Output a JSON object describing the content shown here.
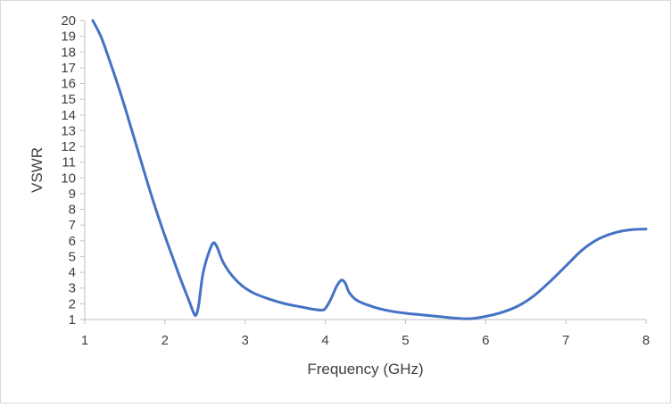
{
  "chart_data": {
    "type": "line",
    "title": "",
    "xlabel": "Frequency (GHz)",
    "ylabel": "VSWR",
    "xlim": [
      1,
      8
    ],
    "ylim": [
      1,
      20
    ],
    "x_ticks": [
      "1",
      "2",
      "3",
      "4",
      "5",
      "6",
      "7",
      "8"
    ],
    "y_ticks": [
      "1",
      "2",
      "3",
      "4",
      "5",
      "6",
      "7",
      "8",
      "9",
      "10",
      "11",
      "12",
      "13",
      "14",
      "15",
      "16",
      "17",
      "18",
      "19",
      "20"
    ],
    "grid": false,
    "legend": "none",
    "series": [
      {
        "color": "#4472c4",
        "points": [
          [
            1.1,
            20.0
          ],
          [
            1.2,
            19.0
          ],
          [
            1.3,
            17.6
          ],
          [
            1.4,
            16.1
          ],
          [
            1.5,
            14.5
          ],
          [
            1.6,
            12.8
          ],
          [
            1.7,
            11.1
          ],
          [
            1.8,
            9.4
          ],
          [
            1.9,
            7.8
          ],
          [
            2.0,
            6.3
          ],
          [
            2.1,
            4.9
          ],
          [
            2.2,
            3.5
          ],
          [
            2.3,
            2.2
          ],
          [
            2.36,
            1.4
          ],
          [
            2.39,
            1.3
          ],
          [
            2.42,
            1.9
          ],
          [
            2.47,
            3.8
          ],
          [
            2.53,
            5.0
          ],
          [
            2.6,
            5.85
          ],
          [
            2.65,
            5.6
          ],
          [
            2.72,
            4.7
          ],
          [
            2.82,
            3.9
          ],
          [
            2.95,
            3.2
          ],
          [
            3.1,
            2.7
          ],
          [
            3.3,
            2.3
          ],
          [
            3.5,
            2.0
          ],
          [
            3.7,
            1.8
          ],
          [
            3.85,
            1.65
          ],
          [
            3.95,
            1.6
          ],
          [
            4.0,
            1.7
          ],
          [
            4.07,
            2.3
          ],
          [
            4.14,
            3.1
          ],
          [
            4.2,
            3.5
          ],
          [
            4.25,
            3.3
          ],
          [
            4.3,
            2.7
          ],
          [
            4.4,
            2.2
          ],
          [
            4.6,
            1.8
          ],
          [
            4.8,
            1.55
          ],
          [
            5.0,
            1.4
          ],
          [
            5.2,
            1.3
          ],
          [
            5.4,
            1.2
          ],
          [
            5.6,
            1.1
          ],
          [
            5.8,
            1.05
          ],
          [
            6.0,
            1.2
          ],
          [
            6.2,
            1.45
          ],
          [
            6.4,
            1.85
          ],
          [
            6.6,
            2.5
          ],
          [
            6.8,
            3.4
          ],
          [
            7.0,
            4.4
          ],
          [
            7.2,
            5.4
          ],
          [
            7.4,
            6.1
          ],
          [
            7.6,
            6.5
          ],
          [
            7.8,
            6.7
          ],
          [
            8.0,
            6.75
          ]
        ]
      }
    ]
  },
  "colors": {
    "line": "#4472c4",
    "axis": "#bfbfbf",
    "text": "#404040",
    "frame": "#d9d9d9"
  }
}
